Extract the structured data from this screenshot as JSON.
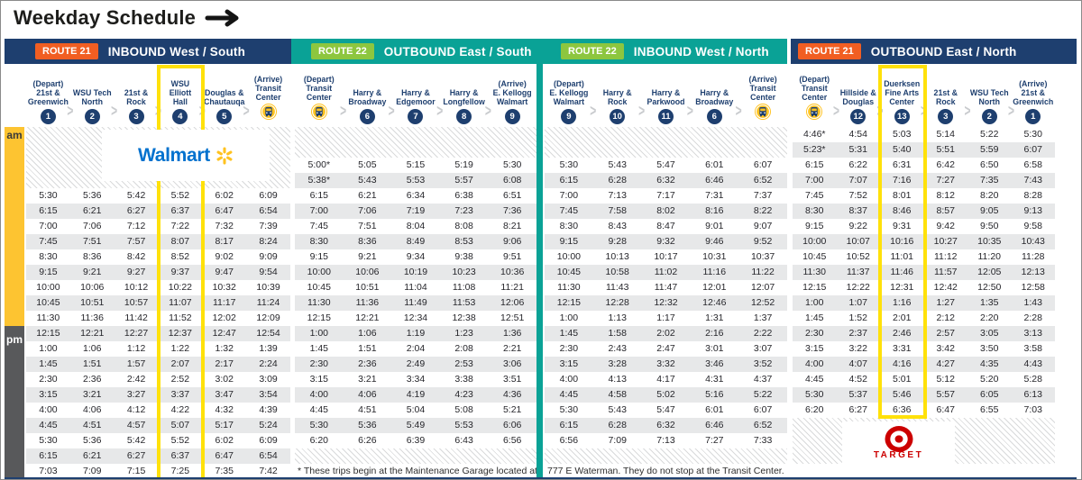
{
  "title": "Weekday Schedule",
  "time_strip": {
    "am": "am",
    "pm": "pm"
  },
  "logos": {
    "walmart": "Walmart",
    "target": "TARGET"
  },
  "colors": {
    "navy": "#1e3f6f",
    "teal": "#0aa296",
    "orange": "#f15e22",
    "green": "#8dc63f",
    "highlight_yellow": "#ffe10a",
    "strip_yellow": "#fdc431",
    "pm_gray": "#58595b",
    "row_stripe": "#e7e8e9",
    "stop_text": "#1e3f6f",
    "walmart_blue": "#0071ce",
    "spark_yellow": "#ffc220",
    "target_red": "#cc0000",
    "hatch_line": "#d9dadb",
    "time_text": "#26262b"
  },
  "sections": [
    {
      "route": "ROUTE 21",
      "direction": "INBOUND West / South",
      "theme": "navy",
      "badge": "orange",
      "logo": "walmart",
      "stops": [
        {
          "lines": [
            "(Depart)",
            "21st &",
            "Greenwich"
          ],
          "marker": "1"
        },
        {
          "lines": [
            "WSU Tech",
            "North"
          ],
          "marker": "2"
        },
        {
          "lines": [
            "21st &",
            "Rock"
          ],
          "marker": "3"
        },
        {
          "lines": [
            "WSU",
            "Elliott",
            "Hall"
          ],
          "marker": "4",
          "highlight": true
        },
        {
          "lines": [
            "Douglas &",
            "Chautauqa"
          ],
          "marker": "5"
        },
        {
          "lines": [
            "(Arrive)",
            "Transit",
            "Center"
          ],
          "marker": "bus"
        }
      ],
      "times": [
        [
          "5:30",
          "5:36",
          "5:42",
          "5:52",
          "6:02",
          "6:09"
        ],
        [
          "6:15",
          "6:21",
          "6:27",
          "6:37",
          "6:47",
          "6:54"
        ],
        [
          "7:00",
          "7:06",
          "7:12",
          "7:22",
          "7:32",
          "7:39"
        ],
        [
          "7:45",
          "7:51",
          "7:57",
          "8:07",
          "8:17",
          "8:24"
        ],
        [
          "8:30",
          "8:36",
          "8:42",
          "8:52",
          "9:02",
          "9:09"
        ],
        [
          "9:15",
          "9:21",
          "9:27",
          "9:37",
          "9:47",
          "9:54"
        ],
        [
          "10:00",
          "10:06",
          "10:12",
          "10:22",
          "10:32",
          "10:39"
        ],
        [
          "10:45",
          "10:51",
          "10:57",
          "11:07",
          "11:17",
          "11:24"
        ],
        [
          "11:30",
          "11:36",
          "11:42",
          "11:52",
          "12:02",
          "12:09"
        ],
        [
          "12:15",
          "12:21",
          "12:27",
          "12:37",
          "12:47",
          "12:54"
        ],
        [
          "1:00",
          "1:06",
          "1:12",
          "1:22",
          "1:32",
          "1:39"
        ],
        [
          "1:45",
          "1:51",
          "1:57",
          "2:07",
          "2:17",
          "2:24"
        ],
        [
          "2:30",
          "2:36",
          "2:42",
          "2:52",
          "3:02",
          "3:09"
        ],
        [
          "3:15",
          "3:21",
          "3:27",
          "3:37",
          "3:47",
          "3:54"
        ],
        [
          "4:00",
          "4:06",
          "4:12",
          "4:22",
          "4:32",
          "4:39"
        ],
        [
          "4:45",
          "4:51",
          "4:57",
          "5:07",
          "5:17",
          "5:24"
        ],
        [
          "5:30",
          "5:36",
          "5:42",
          "5:52",
          "6:02",
          "6:09"
        ],
        [
          "6:15",
          "6:21",
          "6:27",
          "6:37",
          "6:47",
          "6:54"
        ],
        [
          "7:03",
          "7:09",
          "7:15",
          "7:25",
          "7:35",
          "7:42"
        ]
      ]
    },
    {
      "route": "ROUTE 22",
      "direction": "OUTBOUND East / South",
      "theme": "teal",
      "badge": "green",
      "footnote": "* These trips begin at the Maintenance Garage located at",
      "stops": [
        {
          "lines": [
            "(Depart)",
            "Transit",
            "Center"
          ],
          "marker": "bus"
        },
        {
          "lines": [
            "Harry &",
            "Broadway"
          ],
          "marker": "6"
        },
        {
          "lines": [
            "Harry &",
            "Edgemoor"
          ],
          "marker": "7"
        },
        {
          "lines": [
            "Harry &",
            "Longfellow"
          ],
          "marker": "8"
        },
        {
          "lines": [
            "(Arrive)",
            "E. Kellogg",
            "Walmart"
          ],
          "marker": "9"
        }
      ],
      "times": [
        [
          "5:00*",
          "5:05",
          "5:15",
          "5:19",
          "5:30"
        ],
        [
          "5:38*",
          "5:43",
          "5:53",
          "5:57",
          "6:08"
        ],
        [
          "6:15",
          "6:21",
          "6:34",
          "6:38",
          "6:51"
        ],
        [
          "7:00",
          "7:06",
          "7:19",
          "7:23",
          "7:36"
        ],
        [
          "7:45",
          "7:51",
          "8:04",
          "8:08",
          "8:21"
        ],
        [
          "8:30",
          "8:36",
          "8:49",
          "8:53",
          "9:06"
        ],
        [
          "9:15",
          "9:21",
          "9:34",
          "9:38",
          "9:51"
        ],
        [
          "10:00",
          "10:06",
          "10:19",
          "10:23",
          "10:36"
        ],
        [
          "10:45",
          "10:51",
          "11:04",
          "11:08",
          "11:21"
        ],
        [
          "11:30",
          "11:36",
          "11:49",
          "11:53",
          "12:06"
        ],
        [
          "12:15",
          "12:21",
          "12:34",
          "12:38",
          "12:51"
        ],
        [
          "1:00",
          "1:06",
          "1:19",
          "1:23",
          "1:36"
        ],
        [
          "1:45",
          "1:51",
          "2:04",
          "2:08",
          "2:21"
        ],
        [
          "2:30",
          "2:36",
          "2:49",
          "2:53",
          "3:06"
        ],
        [
          "3:15",
          "3:21",
          "3:34",
          "3:38",
          "3:51"
        ],
        [
          "4:00",
          "4:06",
          "4:19",
          "4:23",
          "4:36"
        ],
        [
          "4:45",
          "4:51",
          "5:04",
          "5:08",
          "5:21"
        ],
        [
          "5:30",
          "5:36",
          "5:49",
          "5:53",
          "6:06"
        ],
        [
          "6:20",
          "6:26",
          "6:39",
          "6:43",
          "6:56"
        ]
      ]
    },
    {
      "route": "ROUTE 22",
      "direction": "INBOUND West / North",
      "theme": "teal",
      "badge": "green",
      "footnote": "777 E Waterman. They do not stop at the Transit Center.",
      "stops": [
        {
          "lines": [
            "(Depart)",
            "E. Kellogg",
            "Walmart"
          ],
          "marker": "9"
        },
        {
          "lines": [
            "Harry &",
            "Rock"
          ],
          "marker": "10"
        },
        {
          "lines": [
            "Harry &",
            "Parkwood"
          ],
          "marker": "11"
        },
        {
          "lines": [
            "Harry &",
            "Broadway"
          ],
          "marker": "6"
        },
        {
          "lines": [
            "(Arrive)",
            "Transit",
            "Center"
          ],
          "marker": "bus"
        }
      ],
      "times": [
        [
          "5:30",
          "5:43",
          "5:47",
          "6:01",
          "6:07"
        ],
        [
          "6:15",
          "6:28",
          "6:32",
          "6:46",
          "6:52"
        ],
        [
          "7:00",
          "7:13",
          "7:17",
          "7:31",
          "7:37"
        ],
        [
          "7:45",
          "7:58",
          "8:02",
          "8:16",
          "8:22"
        ],
        [
          "8:30",
          "8:43",
          "8:47",
          "9:01",
          "9:07"
        ],
        [
          "9:15",
          "9:28",
          "9:32",
          "9:46",
          "9:52"
        ],
        [
          "10:00",
          "10:13",
          "10:17",
          "10:31",
          "10:37"
        ],
        [
          "10:45",
          "10:58",
          "11:02",
          "11:16",
          "11:22"
        ],
        [
          "11:30",
          "11:43",
          "11:47",
          "12:01",
          "12:07"
        ],
        [
          "12:15",
          "12:28",
          "12:32",
          "12:46",
          "12:52"
        ],
        [
          "1:00",
          "1:13",
          "1:17",
          "1:31",
          "1:37"
        ],
        [
          "1:45",
          "1:58",
          "2:02",
          "2:16",
          "2:22"
        ],
        [
          "2:30",
          "2:43",
          "2:47",
          "3:01",
          "3:07"
        ],
        [
          "3:15",
          "3:28",
          "3:32",
          "3:46",
          "3:52"
        ],
        [
          "4:00",
          "4:13",
          "4:17",
          "4:31",
          "4:37"
        ],
        [
          "4:45",
          "4:58",
          "5:02",
          "5:16",
          "5:22"
        ],
        [
          "5:30",
          "5:43",
          "5:47",
          "6:01",
          "6:07"
        ],
        [
          "6:15",
          "6:28",
          "6:32",
          "6:46",
          "6:52"
        ],
        [
          "6:56",
          "7:09",
          "7:13",
          "7:27",
          "7:33"
        ]
      ]
    },
    {
      "route": "ROUTE 21",
      "direction": "OUTBOUND East / North",
      "theme": "navy",
      "badge": "orange",
      "logo": "target",
      "stops": [
        {
          "lines": [
            "(Depart)",
            "Transit",
            "Center"
          ],
          "marker": "bus"
        },
        {
          "lines": [
            "Hillside &",
            "Douglas"
          ],
          "marker": "12"
        },
        {
          "lines": [
            "Duerksen",
            "Fine Arts",
            "Center"
          ],
          "marker": "13",
          "highlight": true
        },
        {
          "lines": [
            "21st &",
            "Rock"
          ],
          "marker": "3"
        },
        {
          "lines": [
            "WSU Tech",
            "North"
          ],
          "marker": "2"
        },
        {
          "lines": [
            "(Arrive)",
            "21st &",
            "Greenwich"
          ],
          "marker": "1"
        }
      ],
      "times": [
        [
          "4:46*",
          "4:54",
          "5:03",
          "5:14",
          "5:22",
          "5:30"
        ],
        [
          "5:23*",
          "5:31",
          "5:40",
          "5:51",
          "5:59",
          "6:07"
        ],
        [
          "6:15",
          "6:22",
          "6:31",
          "6:42",
          "6:50",
          "6:58"
        ],
        [
          "7:00",
          "7:07",
          "7:16",
          "7:27",
          "7:35",
          "7:43"
        ],
        [
          "7:45",
          "7:52",
          "8:01",
          "8:12",
          "8:20",
          "8:28"
        ],
        [
          "8:30",
          "8:37",
          "8:46",
          "8:57",
          "9:05",
          "9:13"
        ],
        [
          "9:15",
          "9:22",
          "9:31",
          "9:42",
          "9:50",
          "9:58"
        ],
        [
          "10:00",
          "10:07",
          "10:16",
          "10:27",
          "10:35",
          "10:43"
        ],
        [
          "10:45",
          "10:52",
          "11:01",
          "11:12",
          "11:20",
          "11:28"
        ],
        [
          "11:30",
          "11:37",
          "11:46",
          "11:57",
          "12:05",
          "12:13"
        ],
        [
          "12:15",
          "12:22",
          "12:31",
          "12:42",
          "12:50",
          "12:58"
        ],
        [
          "1:00",
          "1:07",
          "1:16",
          "1:27",
          "1:35",
          "1:43"
        ],
        [
          "1:45",
          "1:52",
          "2:01",
          "2:12",
          "2:20",
          "2:28"
        ],
        [
          "2:30",
          "2:37",
          "2:46",
          "2:57",
          "3:05",
          "3:13"
        ],
        [
          "3:15",
          "3:22",
          "3:31",
          "3:42",
          "3:50",
          "3:58"
        ],
        [
          "4:00",
          "4:07",
          "4:16",
          "4:27",
          "4:35",
          "4:43"
        ],
        [
          "4:45",
          "4:52",
          "5:01",
          "5:12",
          "5:20",
          "5:28"
        ],
        [
          "5:30",
          "5:37",
          "5:46",
          "5:57",
          "6:05",
          "6:13"
        ],
        [
          "6:20",
          "6:27",
          "6:36",
          "6:47",
          "6:55",
          "7:03"
        ]
      ]
    }
  ]
}
